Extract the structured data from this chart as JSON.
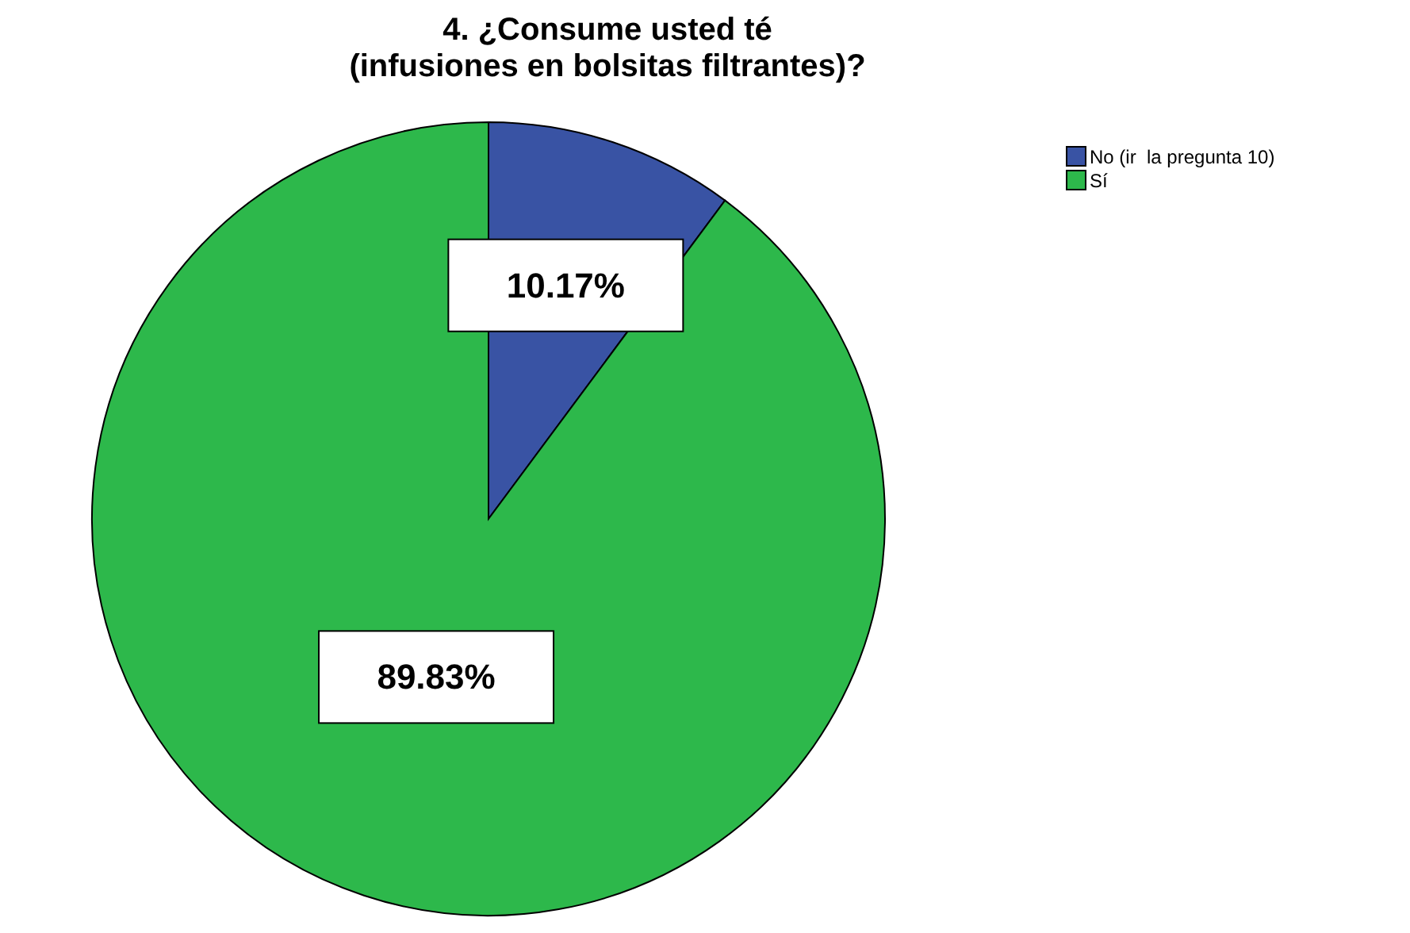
{
  "chart_data": {
    "type": "pie",
    "title": "4. ¿Consume usted té\n(infusiones en bolsitas filtrantes)?",
    "categories": [
      "No (ir  la pregunta 10)",
      "Sí"
    ],
    "values": [
      10.17,
      89.83
    ],
    "value_labels": [
      "10.17%",
      "89.83%"
    ],
    "colors": [
      "#3953a4",
      "#2db84b"
    ],
    "legend": "top right"
  }
}
